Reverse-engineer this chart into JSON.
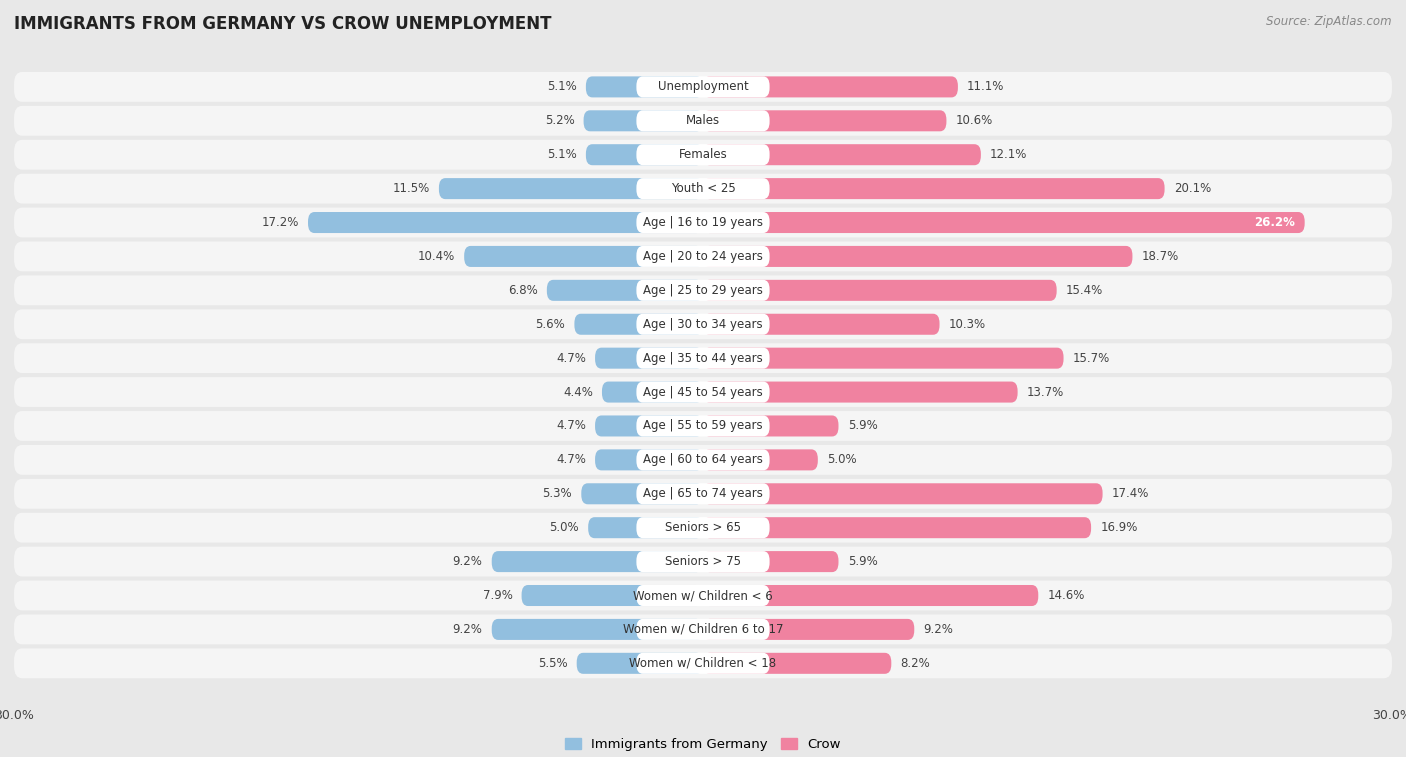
{
  "title": "IMMIGRANTS FROM GERMANY VS CROW UNEMPLOYMENT",
  "source": "Source: ZipAtlas.com",
  "categories": [
    "Unemployment",
    "Males",
    "Females",
    "Youth < 25",
    "Age | 16 to 19 years",
    "Age | 20 to 24 years",
    "Age | 25 to 29 years",
    "Age | 30 to 34 years",
    "Age | 35 to 44 years",
    "Age | 45 to 54 years",
    "Age | 55 to 59 years",
    "Age | 60 to 64 years",
    "Age | 65 to 74 years",
    "Seniors > 65",
    "Seniors > 75",
    "Women w/ Children < 6",
    "Women w/ Children 6 to 17",
    "Women w/ Children < 18"
  ],
  "left_values": [
    5.1,
    5.2,
    5.1,
    11.5,
    17.2,
    10.4,
    6.8,
    5.6,
    4.7,
    4.4,
    4.7,
    4.7,
    5.3,
    5.0,
    9.2,
    7.9,
    9.2,
    5.5
  ],
  "right_values": [
    11.1,
    10.6,
    12.1,
    20.1,
    26.2,
    18.7,
    15.4,
    10.3,
    15.7,
    13.7,
    5.9,
    5.0,
    17.4,
    16.9,
    5.9,
    14.6,
    9.2,
    8.2
  ],
  "left_color": "#92bfdf",
  "right_color": "#f082a0",
  "axis_max": 30.0,
  "background_color": "#e8e8e8",
  "row_bg_color": "#f5f5f5",
  "bar_label_bg": "#ffffff",
  "legend_left": "Immigrants from Germany",
  "legend_right": "Crow",
  "title_fontsize": 12,
  "label_fontsize": 8.5,
  "value_fontsize": 8.5,
  "source_fontsize": 8.5
}
